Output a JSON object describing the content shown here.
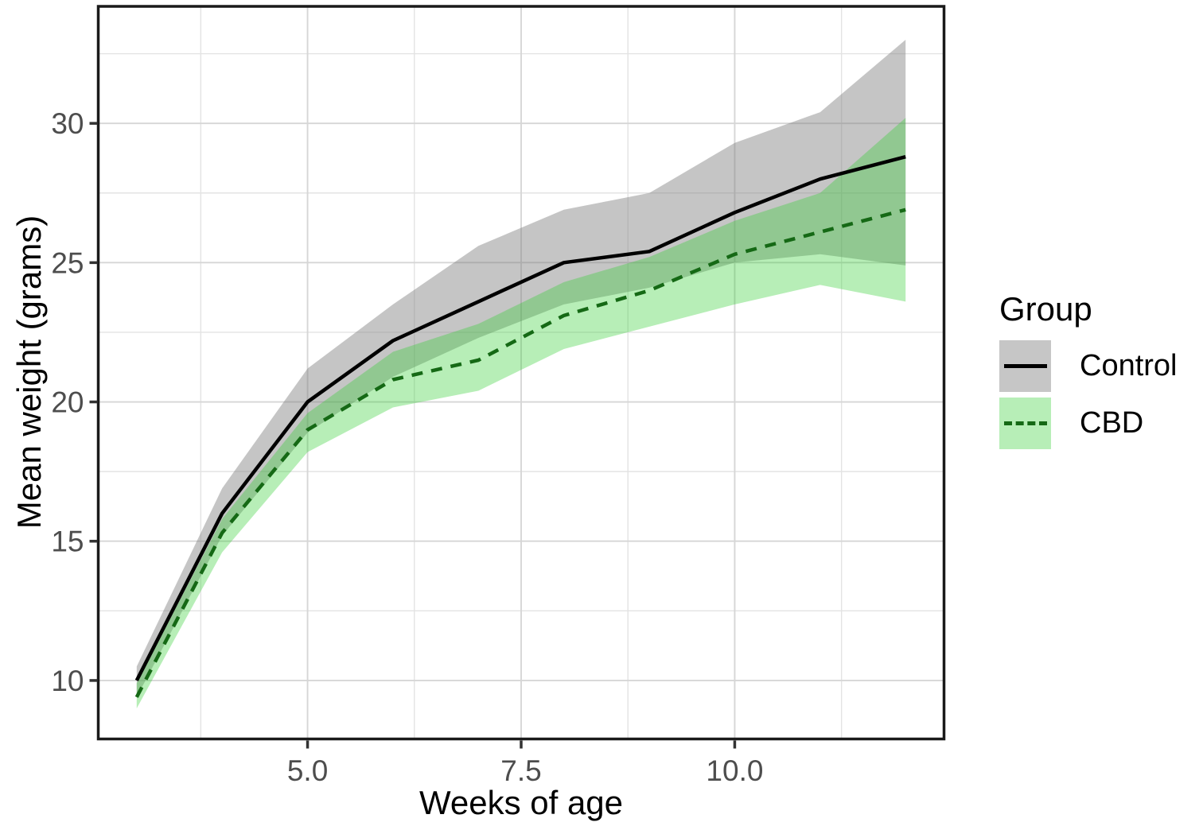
{
  "legend": {
    "title": "Group",
    "items": [
      {
        "label": "Control",
        "swatch_fill": "#C6C6C6",
        "line_color": "#000000",
        "line_style": "solid"
      },
      {
        "label": "CBD",
        "swatch_fill": "#B7EEB7",
        "line_color": "#156915",
        "line_style": "dashed"
      }
    ]
  },
  "chart_data": {
    "type": "line",
    "title": "",
    "xlabel": "Weeks of age",
    "ylabel": "Mean weight (grams)",
    "x": [
      3,
      4,
      5,
      6,
      7,
      8,
      9,
      10,
      11,
      12
    ],
    "series": [
      {
        "name": "Control",
        "values": [
          10.0,
          16.0,
          20.0,
          22.2,
          23.6,
          25.0,
          25.4,
          26.8,
          28.0,
          28.8
        ],
        "lower": [
          9.4,
          15.2,
          18.9,
          20.9,
          22.3,
          23.5,
          24.1,
          25.0,
          25.3,
          24.9
        ],
        "upper": [
          10.5,
          16.9,
          21.2,
          23.5,
          25.6,
          26.9,
          27.5,
          29.3,
          30.4,
          33.0
        ],
        "color": "#000000",
        "style": "solid",
        "ribbon_color": "rgba(127,127,127,0.45)"
      },
      {
        "name": "CBD",
        "values": [
          9.4,
          15.3,
          19.0,
          20.8,
          21.5,
          23.1,
          24.0,
          25.3,
          26.1,
          26.9
        ],
        "lower": [
          9.0,
          14.6,
          18.2,
          19.8,
          20.4,
          21.9,
          22.7,
          23.5,
          24.2,
          23.6
        ],
        "upper": [
          9.9,
          15.8,
          19.6,
          21.8,
          22.8,
          24.3,
          25.2,
          26.5,
          27.5,
          30.2
        ],
        "color": "#156915",
        "style": "dashed",
        "ribbon_color": "rgba(50,205,50,0.35)"
      }
    ],
    "xticks": {
      "values": [
        5.0,
        7.5,
        10.0
      ],
      "labels": [
        "5.0",
        "7.5",
        "10.0"
      ]
    },
    "yticks": {
      "values": [
        10,
        15,
        20,
        25,
        30
      ],
      "labels": [
        "10",
        "15",
        "20",
        "25",
        "30"
      ]
    },
    "x_minor": [
      3.75,
      6.25,
      8.75,
      11.25
    ],
    "y_minor": [
      12.5,
      17.5,
      22.5,
      27.5,
      32.5
    ],
    "xlim": [
      2.55,
      12.45
    ],
    "ylim": [
      7.9,
      34.2
    ],
    "grid": "major+minor",
    "legend_position": "right",
    "tick_label_color": "#4D4D4D"
  }
}
